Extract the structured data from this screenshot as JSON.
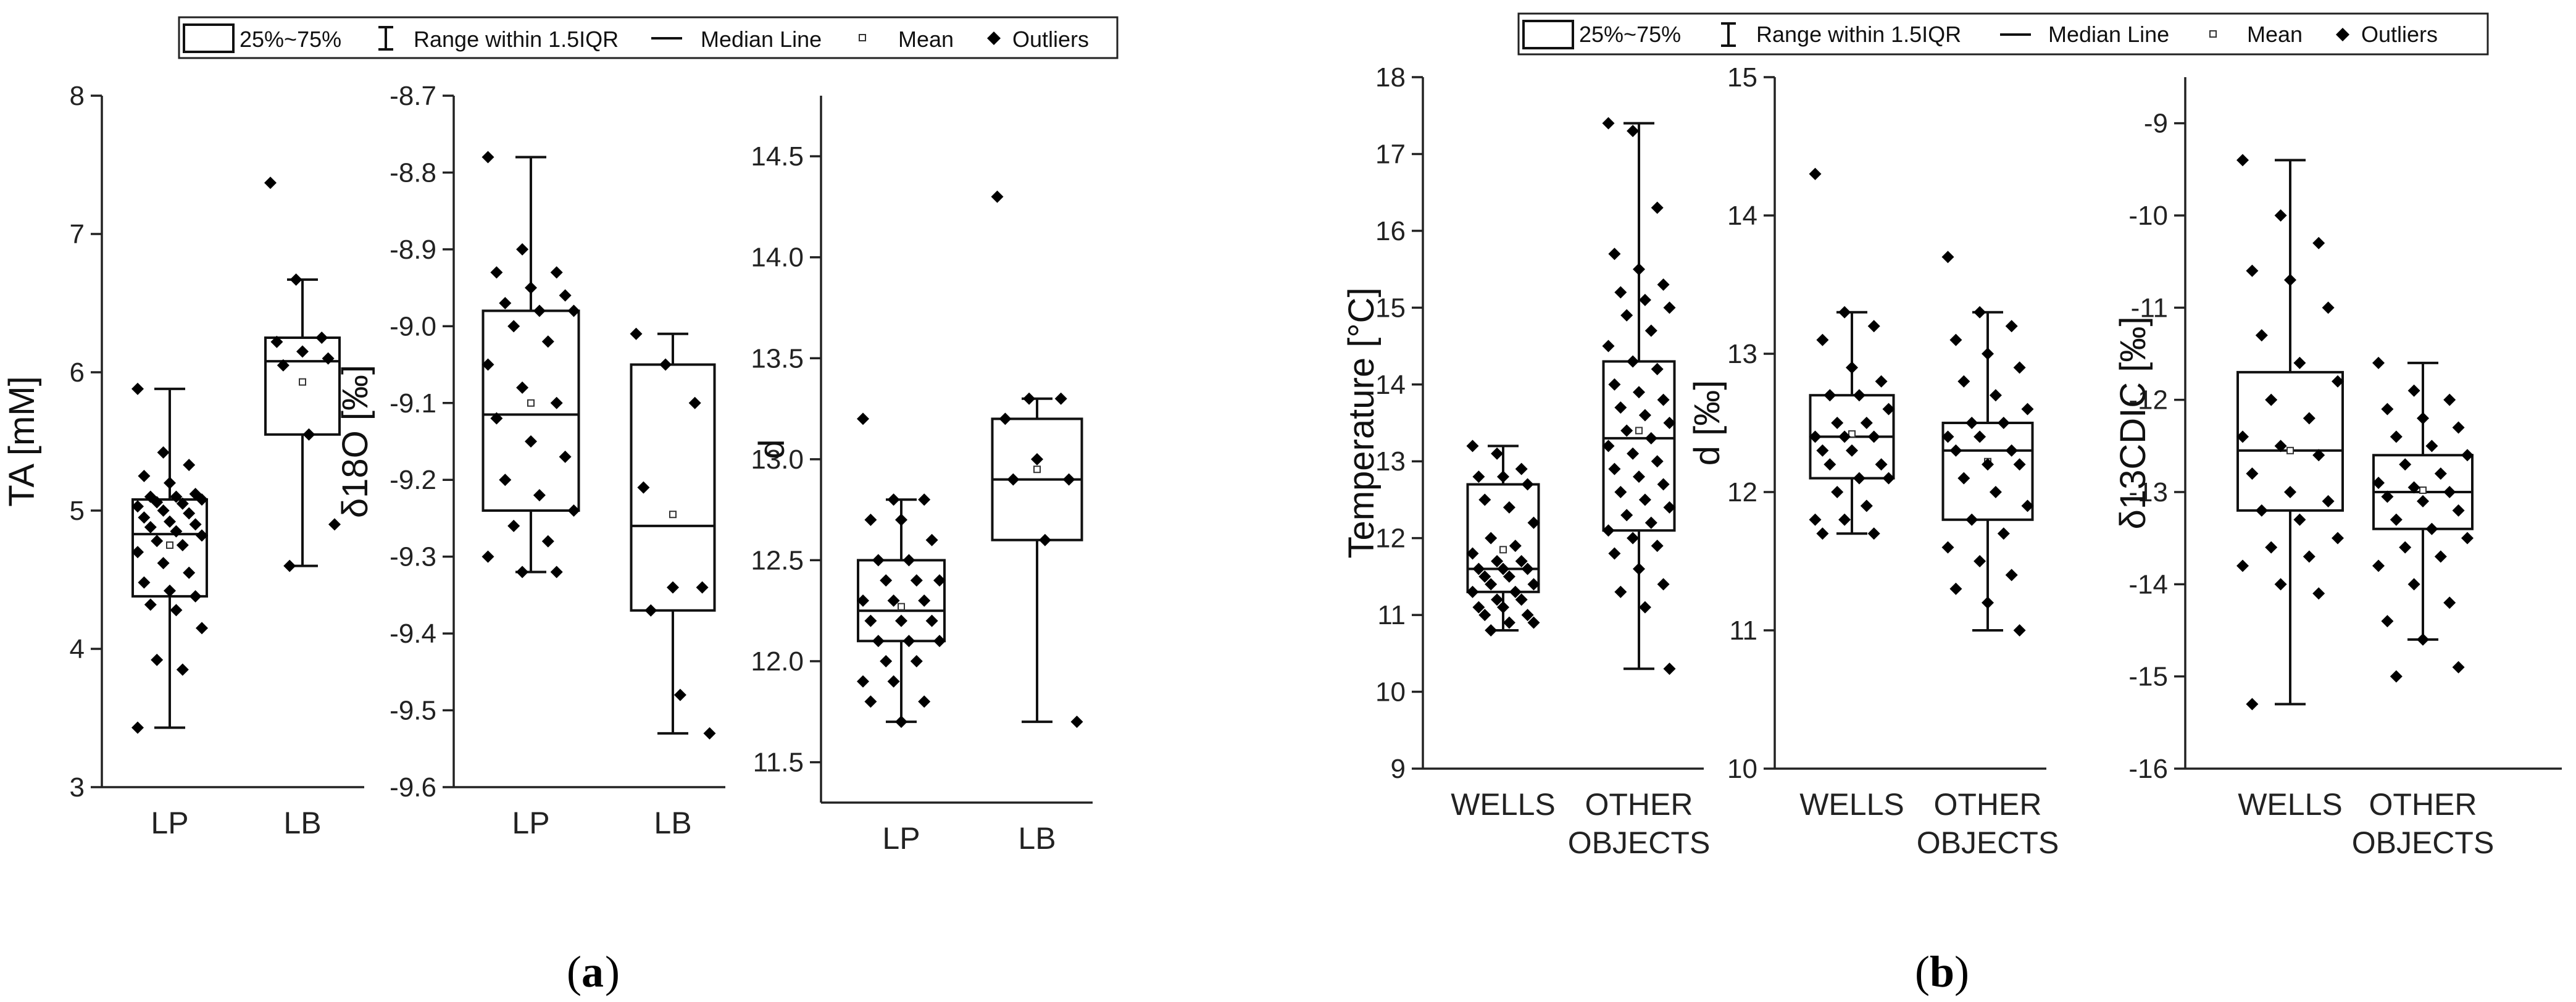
{
  "legend": {
    "box_label": "25%~75%",
    "range_label": "Range within 1.5IQR",
    "median_label": "Median Line",
    "mean_label": "Mean",
    "outliers_label": "Outliers"
  },
  "panel_labels": {
    "a": "a",
    "b": "b"
  },
  "chart_data": [
    {
      "type": "box",
      "panel": "a",
      "ylabel": "TA [mM]",
      "ylim": [
        3,
        8
      ],
      "yticks": [
        "3",
        "4",
        "5",
        "6",
        "7",
        "8"
      ],
      "categories": [
        "LP",
        "LB"
      ],
      "boxes": [
        {
          "category": "LP",
          "q1": 4.38,
          "median": 4.83,
          "q3": 5.08,
          "mean": 4.75,
          "whisker_low": 3.43,
          "whisker_high": 5.88,
          "points": [
            5.88,
            5.42,
            5.33,
            5.25,
            5.2,
            5.12,
            5.1,
            5.1,
            5.08,
            5.06,
            5.05,
            5.03,
            5.0,
            4.98,
            4.95,
            4.92,
            4.9,
            4.88,
            4.85,
            4.82,
            4.78,
            4.75,
            4.7,
            4.62,
            4.55,
            4.48,
            4.42,
            4.38,
            4.32,
            4.28,
            4.15,
            3.92,
            3.85,
            3.43
          ]
        },
        {
          "category": "LB",
          "q1": 5.55,
          "median": 6.08,
          "q3": 6.25,
          "mean": 5.93,
          "whisker_low": 4.6,
          "whisker_high": 6.67,
          "points": [
            7.37,
            6.67,
            6.25,
            6.22,
            6.15,
            6.1,
            6.05,
            5.55,
            4.9,
            4.6
          ]
        }
      ]
    },
    {
      "type": "box",
      "panel": "a",
      "ylabel": "δ18O [‰]",
      "ylim": [
        -9.6,
        -8.7
      ],
      "yticks": [
        "-9.6",
        "-9.5",
        "-9.4",
        "-9.3",
        "-9.2",
        "-9.1",
        "-9.0",
        "-8.9",
        "-8.8",
        "-8.7"
      ],
      "categories": [
        "LP",
        "LB"
      ],
      "boxes": [
        {
          "category": "LP",
          "q1": -9.24,
          "median": -9.115,
          "q3": -8.98,
          "mean": -9.1,
          "whisker_low": -9.32,
          "whisker_high": -8.78,
          "points": [
            -8.78,
            -8.9,
            -8.93,
            -8.93,
            -8.95,
            -8.96,
            -8.97,
            -8.98,
            -8.98,
            -9.0,
            -9.02,
            -9.05,
            -9.08,
            -9.1,
            -9.12,
            -9.15,
            -9.17,
            -9.2,
            -9.22,
            -9.24,
            -9.26,
            -9.28,
            -9.3,
            -9.32,
            -9.32
          ]
        },
        {
          "category": "LB",
          "q1": -9.37,
          "median": -9.26,
          "q3": -9.05,
          "mean": -9.245,
          "whisker_low": -9.53,
          "whisker_high": -9.01,
          "points": [
            -9.01,
            -9.05,
            -9.1,
            -9.21,
            -9.34,
            -9.34,
            -9.37,
            -9.48,
            -9.53
          ]
        }
      ]
    },
    {
      "type": "box",
      "panel": "a",
      "ylabel": "d",
      "ylim": [
        11.3,
        14.8
      ],
      "yticks": [
        "11.5",
        "12.0",
        "12.5",
        "13.0",
        "13.5",
        "14.0",
        "14.5"
      ],
      "categories": [
        "LP",
        "LB"
      ],
      "boxes": [
        {
          "category": "LP",
          "q1": 12.1,
          "median": 12.25,
          "q3": 12.5,
          "mean": 12.27,
          "whisker_low": 11.7,
          "whisker_high": 12.8,
          "points": [
            13.2,
            12.8,
            12.8,
            12.7,
            12.7,
            12.6,
            12.5,
            12.5,
            12.4,
            12.4,
            12.4,
            12.3,
            12.3,
            12.3,
            12.2,
            12.2,
            12.2,
            12.1,
            12.1,
            12.1,
            12.0,
            12.0,
            11.9,
            11.9,
            11.8,
            11.8,
            11.7
          ]
        },
        {
          "category": "LB",
          "q1": 12.6,
          "median": 12.9,
          "q3": 13.2,
          "mean": 12.95,
          "whisker_low": 11.7,
          "whisker_high": 13.3,
          "points": [
            14.3,
            13.3,
            13.3,
            13.2,
            13.0,
            12.9,
            12.9,
            12.6,
            11.7
          ]
        }
      ]
    },
    {
      "type": "box",
      "panel": "b",
      "ylabel": "Temperature [°C]",
      "ylim": [
        9,
        18
      ],
      "yticks": [
        "9",
        "10",
        "11",
        "12",
        "13",
        "14",
        "15",
        "16",
        "17",
        "18"
      ],
      "categories": [
        "WELLS",
        "OTHER OBJECTS"
      ],
      "boxes": [
        {
          "category": "WELLS",
          "q1": 11.3,
          "median": 11.6,
          "q3": 12.7,
          "mean": 11.85,
          "whisker_low": 10.8,
          "whisker_high": 13.2,
          "points": [
            13.2,
            13.1,
            12.9,
            12.8,
            12.8,
            12.7,
            12.5,
            12.4,
            12.2,
            12.0,
            11.9,
            11.8,
            11.7,
            11.7,
            11.6,
            11.6,
            11.6,
            11.5,
            11.5,
            11.4,
            11.4,
            11.3,
            11.3,
            11.2,
            11.2,
            11.1,
            11.1,
            11.0,
            11.0,
            10.9,
            10.9,
            10.8
          ]
        },
        {
          "category": "OTHER OBJECTS",
          "q1": 12.1,
          "median": 13.3,
          "q3": 14.3,
          "mean": 13.4,
          "whisker_low": 10.3,
          "whisker_high": 17.4,
          "points": [
            17.4,
            17.3,
            16.3,
            15.7,
            15.5,
            15.3,
            15.2,
            15.1,
            15.0,
            14.9,
            14.7,
            14.5,
            14.3,
            14.2,
            14.0,
            13.9,
            13.8,
            13.7,
            13.6,
            13.5,
            13.4,
            13.3,
            13.2,
            13.1,
            13.0,
            12.9,
            12.8,
            12.7,
            12.6,
            12.5,
            12.4,
            12.3,
            12.2,
            12.1,
            12.0,
            11.9,
            11.8,
            11.6,
            11.4,
            11.3,
            11.1,
            10.3
          ]
        }
      ]
    },
    {
      "type": "box",
      "panel": "b",
      "ylabel": "d [‰]",
      "ylim": [
        10,
        15
      ],
      "yticks": [
        "10",
        "11",
        "12",
        "13",
        "14",
        "15"
      ],
      "categories": [
        "WELLS",
        "OTHER OBJECTS"
      ],
      "boxes": [
        {
          "category": "WELLS",
          "q1": 12.1,
          "median": 12.4,
          "q3": 12.7,
          "mean": 12.42,
          "whisker_low": 11.7,
          "whisker_high": 13.3,
          "points": [
            14.3,
            13.3,
            13.2,
            13.1,
            12.9,
            12.8,
            12.7,
            12.7,
            12.6,
            12.5,
            12.5,
            12.4,
            12.4,
            12.4,
            12.3,
            12.3,
            12.2,
            12.2,
            12.1,
            12.1,
            12.0,
            11.9,
            11.8,
            11.8,
            11.7,
            11.7
          ]
        },
        {
          "category": "OTHER OBJECTS",
          "q1": 11.8,
          "median": 12.3,
          "q3": 12.5,
          "mean": 12.22,
          "whisker_low": 11.0,
          "whisker_high": 13.3,
          "points": [
            13.7,
            13.3,
            13.2,
            13.1,
            13.0,
            12.9,
            12.8,
            12.7,
            12.6,
            12.5,
            12.5,
            12.4,
            12.4,
            12.3,
            12.3,
            12.2,
            12.2,
            12.1,
            12.0,
            11.9,
            11.8,
            11.7,
            11.6,
            11.5,
            11.4,
            11.3,
            11.2,
            11.0
          ]
        }
      ]
    },
    {
      "type": "box",
      "panel": "b",
      "ylabel": "δ13CDIC [‰]",
      "ylim": [
        -16,
        -8.5
      ],
      "yticks": [
        "-16",
        "-15",
        "-14",
        "-13",
        "-12",
        "-11",
        "-10",
        "-9"
      ],
      "categories": [
        "WELLS",
        "OTHER OBJECTS"
      ],
      "boxes": [
        {
          "category": "WELLS",
          "q1": -13.2,
          "median": -12.55,
          "q3": -11.7,
          "mean": -12.55,
          "whisker_low": -15.3,
          "whisker_high": -9.4,
          "points": [
            -9.4,
            -10.0,
            -10.3,
            -10.6,
            -10.7,
            -11.0,
            -11.3,
            -11.6,
            -11.8,
            -12.0,
            -12.2,
            -12.4,
            -12.5,
            -12.6,
            -12.8,
            -13.0,
            -13.1,
            -13.2,
            -13.3,
            -13.5,
            -13.6,
            -13.7,
            -13.8,
            -14.0,
            -14.1,
            -15.3
          ]
        },
        {
          "category": "OTHER OBJECTS",
          "q1": -13.4,
          "median": -13.0,
          "q3": -12.6,
          "mean": -12.98,
          "whisker_low": -14.6,
          "whisker_high": -11.6,
          "points": [
            -11.6,
            -11.9,
            -12.0,
            -12.1,
            -12.2,
            -12.3,
            -12.4,
            -12.5,
            -12.6,
            -12.7,
            -12.8,
            -12.9,
            -12.95,
            -13.0,
            -13.05,
            -13.1,
            -13.2,
            -13.3,
            -13.4,
            -13.5,
            -13.6,
            -13.7,
            -13.8,
            -14.0,
            -14.2,
            -14.4,
            -14.6,
            -14.9,
            -15.0
          ]
        }
      ]
    }
  ]
}
